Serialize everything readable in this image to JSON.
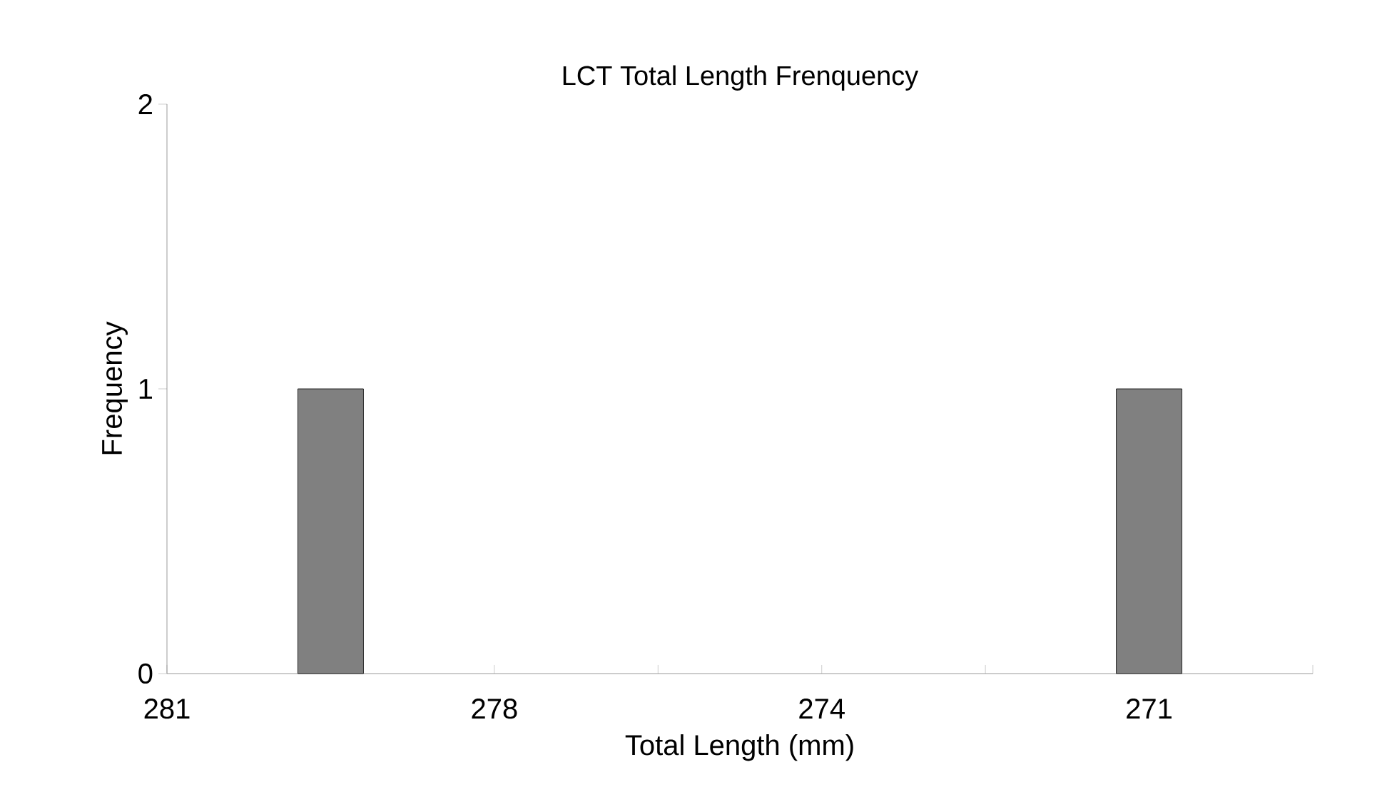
{
  "chart_data": {
    "type": "bar",
    "title": "LCT Total Length Frenquency",
    "xlabel": "Total Length (mm)",
    "ylabel": "Frequency",
    "categories": [
      "281",
      null,
      "278",
      null,
      "274",
      null,
      "271",
      null
    ],
    "values": [
      null,
      1,
      null,
      null,
      null,
      null,
      1,
      null
    ],
    "color": "#808080",
    "ylim": [
      0,
      2
    ],
    "yticks": [
      0,
      1,
      2
    ]
  }
}
